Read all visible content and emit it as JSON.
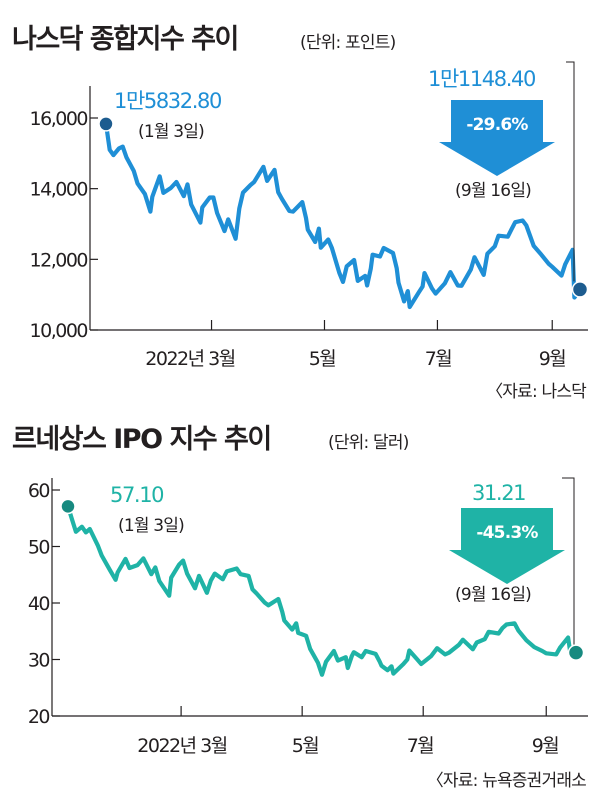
{
  "chart_data": [
    {
      "type": "line",
      "title": "나스닥 종합지수 추이",
      "unit": "(단위: 포인트)",
      "source": "〈자료: 나스닥",
      "color": "#1f8fd6",
      "marker_color": "#1d5c8f",
      "ylim": [
        10000,
        16500
      ],
      "yticks": [
        "16,000",
        "14,000",
        "12,000",
        "10,000"
      ],
      "ytick_values": [
        16000,
        14000,
        12000,
        10000
      ],
      "xticks": [
        "2022년 3월",
        "5월",
        "7월",
        "9월"
      ],
      "xlim": [
        "2022-01-03",
        "2022-09-16"
      ],
      "xtick_dates": [
        "2022-03-01",
        "2022-05-01",
        "2022-07-01",
        "2022-09-01"
      ],
      "start": {
        "date": "2022-01-03",
        "value": 15832.8,
        "label": "1만5832.80",
        "note": "(1월 3일)"
      },
      "end": {
        "date": "2022-09-16",
        "value": 11148.4,
        "label": "1만1148.40",
        "note": "(9월 16일)"
      },
      "change": "-29.6%",
      "series": [
        {
          "values": [
            [
              "2022-01-03",
              15832.8
            ],
            [
              "2022-01-05",
              15100
            ],
            [
              "2022-01-07",
              14950
            ],
            [
              "2022-01-10",
              15140
            ],
            [
              "2022-01-12",
              15190
            ],
            [
              "2022-01-14",
              14890
            ],
            [
              "2022-01-18",
              14500
            ],
            [
              "2022-01-20",
              14150
            ],
            [
              "2022-01-24",
              13850
            ],
            [
              "2022-01-27",
              13350
            ],
            [
              "2022-01-28",
              13770
            ],
            [
              "2022-02-01",
              14350
            ],
            [
              "2022-02-03",
              13880
            ],
            [
              "2022-02-07",
              14020
            ],
            [
              "2022-02-10",
              14190
            ],
            [
              "2022-02-14",
              13790
            ],
            [
              "2022-02-16",
              14120
            ],
            [
              "2022-02-18",
              13550
            ],
            [
              "2022-02-23",
              13040
            ],
            [
              "2022-02-24",
              13470
            ],
            [
              "2022-02-28",
              13750
            ],
            [
              "2022-03-02",
              13750
            ],
            [
              "2022-03-04",
              13310
            ],
            [
              "2022-03-08",
              12800
            ],
            [
              "2022-03-10",
              13130
            ],
            [
              "2022-03-14",
              12580
            ],
            [
              "2022-03-16",
              13440
            ],
            [
              "2022-03-18",
              13890
            ],
            [
              "2022-03-22",
              14100
            ],
            [
              "2022-03-24",
              14190
            ],
            [
              "2022-03-29",
              14620
            ],
            [
              "2022-03-31",
              14220
            ],
            [
              "2022-04-04",
              14530
            ],
            [
              "2022-04-06",
              13900
            ],
            [
              "2022-04-08",
              13710
            ],
            [
              "2022-04-12",
              13370
            ],
            [
              "2022-04-14",
              13350
            ],
            [
              "2022-04-19",
              13620
            ],
            [
              "2022-04-21",
              13170
            ],
            [
              "2022-04-22",
              12840
            ],
            [
              "2022-04-26",
              12490
            ],
            [
              "2022-04-28",
              12870
            ],
            [
              "2022-04-29",
              12330
            ],
            [
              "2022-05-03",
              12560
            ],
            [
              "2022-05-05",
              12320
            ],
            [
              "2022-05-09",
              11620
            ],
            [
              "2022-05-11",
              11360
            ],
            [
              "2022-05-13",
              11800
            ],
            [
              "2022-05-17",
              11980
            ],
            [
              "2022-05-19",
              11390
            ],
            [
              "2022-05-23",
              11530
            ],
            [
              "2022-05-24",
              11260
            ],
            [
              "2022-05-26",
              11740
            ],
            [
              "2022-05-27",
              12130
            ],
            [
              "2022-05-31",
              12080
            ],
            [
              "2022-06-02",
              12320
            ],
            [
              "2022-06-07",
              12180
            ],
            [
              "2022-06-09",
              11750
            ],
            [
              "2022-06-10",
              11340
            ],
            [
              "2022-06-13",
              10810
            ],
            [
              "2022-06-15",
              11100
            ],
            [
              "2022-06-16",
              10650
            ],
            [
              "2022-06-21",
              11070
            ],
            [
              "2022-06-23",
              11230
            ],
            [
              "2022-06-24",
              11610
            ],
            [
              "2022-06-28",
              11180
            ],
            [
              "2022-06-30",
              11030
            ],
            [
              "2022-07-05",
              11320
            ],
            [
              "2022-07-08",
              11640
            ],
            [
              "2022-07-12",
              11260
            ],
            [
              "2022-07-14",
              11250
            ],
            [
              "2022-07-19",
              11710
            ],
            [
              "2022-07-21",
              12060
            ],
            [
              "2022-07-26",
              11560
            ],
            [
              "2022-07-28",
              12160
            ],
            [
              "2022-08-01",
              12370
            ],
            [
              "2022-08-03",
              12670
            ],
            [
              "2022-08-08",
              12640
            ],
            [
              "2022-08-10",
              12850
            ],
            [
              "2022-08-12",
              13050
            ],
            [
              "2022-08-16",
              13100
            ],
            [
              "2022-08-18",
              12960
            ],
            [
              "2022-08-22",
              12380
            ],
            [
              "2022-08-26",
              12140
            ],
            [
              "2022-08-30",
              11880
            ],
            [
              "2022-09-01",
              11790
            ],
            [
              "2022-09-06",
              11540
            ],
            [
              "2022-09-08",
              11860
            ],
            [
              "2022-09-12",
              12270
            ],
            [
              "2022-09-13",
              10920
            ],
            [
              "2022-09-16",
              11148.4
            ]
          ]
        }
      ]
    },
    {
      "type": "line",
      "title": "르네상스 IPO 지수 추이",
      "unit": "(단위: 달러)",
      "source": "〈자료: 뉴욕증권거래소",
      "color": "#1fb3a6",
      "marker_color": "#178a80",
      "ylim": [
        20,
        62
      ],
      "yticks": [
        "60",
        "50",
        "40",
        "30",
        "20"
      ],
      "ytick_values": [
        60,
        50,
        40,
        30,
        20
      ],
      "xticks": [
        "2022년 3월",
        "5월",
        "7월",
        "9월"
      ],
      "xlim": [
        "2022-01-03",
        "2022-09-16"
      ],
      "xtick_dates": [
        "2022-03-01",
        "2022-05-01",
        "2022-07-01",
        "2022-09-01"
      ],
      "start": {
        "date": "2022-01-03",
        "value": 57.1,
        "label": "57.10",
        "note": "(1월 3일)"
      },
      "end": {
        "date": "2022-09-16",
        "value": 31.21,
        "label": "31.21",
        "note": "(9월 16일)"
      },
      "change": "-45.3%",
      "series": [
        {
          "values": [
            [
              "2022-01-03",
              57.1
            ],
            [
              "2022-01-05",
              54.8
            ],
            [
              "2022-01-07",
              52.6
            ],
            [
              "2022-01-10",
              53.5
            ],
            [
              "2022-01-12",
              52.5
            ],
            [
              "2022-01-14",
              53.1
            ],
            [
              "2022-01-18",
              50.2
            ],
            [
              "2022-01-20",
              48.4
            ],
            [
              "2022-01-24",
              45.9
            ],
            [
              "2022-01-27",
              44.1
            ],
            [
              "2022-01-28",
              45.4
            ],
            [
              "2022-02-01",
              47.8
            ],
            [
              "2022-02-03",
              46.2
            ],
            [
              "2022-02-07",
              46.7
            ],
            [
              "2022-02-10",
              47.9
            ],
            [
              "2022-02-14",
              45.1
            ],
            [
              "2022-02-16",
              46.3
            ],
            [
              "2022-02-18",
              43.9
            ],
            [
              "2022-02-23",
              41.3
            ],
            [
              "2022-02-24",
              44.5
            ],
            [
              "2022-02-28",
              46.8
            ],
            [
              "2022-03-02",
              47.5
            ],
            [
              "2022-03-04",
              45.2
            ],
            [
              "2022-03-08",
              42.6
            ],
            [
              "2022-03-10",
              44.8
            ],
            [
              "2022-03-14",
              41.8
            ],
            [
              "2022-03-16",
              44.0
            ],
            [
              "2022-03-18",
              45.2
            ],
            [
              "2022-03-22",
              44.2
            ],
            [
              "2022-03-24",
              45.6
            ],
            [
              "2022-03-29",
              46.1
            ],
            [
              "2022-03-31",
              45.1
            ],
            [
              "2022-04-04",
              44.8
            ],
            [
              "2022-04-06",
              42.4
            ],
            [
              "2022-04-08",
              41.7
            ],
            [
              "2022-04-12",
              40.1
            ],
            [
              "2022-04-14",
              39.6
            ],
            [
              "2022-04-19",
              40.7
            ],
            [
              "2022-04-21",
              38.4
            ],
            [
              "2022-04-22",
              36.9
            ],
            [
              "2022-04-26",
              35.3
            ],
            [
              "2022-04-28",
              36.4
            ],
            [
              "2022-04-29",
              34.7
            ],
            [
              "2022-05-03",
              34.2
            ],
            [
              "2022-05-05",
              31.9
            ],
            [
              "2022-05-09",
              29.4
            ],
            [
              "2022-05-11",
              27.3
            ],
            [
              "2022-05-13",
              29.6
            ],
            [
              "2022-05-17",
              31.5
            ],
            [
              "2022-05-19",
              29.8
            ],
            [
              "2022-05-23",
              30.4
            ],
            [
              "2022-05-24",
              28.5
            ],
            [
              "2022-05-26",
              30.6
            ],
            [
              "2022-05-27",
              31.3
            ],
            [
              "2022-05-31",
              30.4
            ],
            [
              "2022-06-02",
              31.5
            ],
            [
              "2022-06-07",
              31.0
            ],
            [
              "2022-06-09",
              29.7
            ],
            [
              "2022-06-10",
              28.9
            ],
            [
              "2022-06-13",
              28.1
            ],
            [
              "2022-06-15",
              28.8
            ],
            [
              "2022-06-16",
              27.5
            ],
            [
              "2022-06-21",
              29.2
            ],
            [
              "2022-06-23",
              30.0
            ],
            [
              "2022-06-24",
              31.6
            ],
            [
              "2022-06-28",
              30.0
            ],
            [
              "2022-06-30",
              29.2
            ],
            [
              "2022-07-05",
              30.6
            ],
            [
              "2022-07-08",
              32.0
            ],
            [
              "2022-07-12",
              30.9
            ],
            [
              "2022-07-14",
              31.2
            ],
            [
              "2022-07-19",
              32.6
            ],
            [
              "2022-07-21",
              33.5
            ],
            [
              "2022-07-26",
              31.8
            ],
            [
              "2022-07-28",
              33.0
            ],
            [
              "2022-08-01",
              33.6
            ],
            [
              "2022-08-03",
              34.9
            ],
            [
              "2022-08-08",
              34.6
            ],
            [
              "2022-08-10",
              35.6
            ],
            [
              "2022-08-12",
              36.2
            ],
            [
              "2022-08-16",
              36.4
            ],
            [
              "2022-08-18",
              35.1
            ],
            [
              "2022-08-22",
              33.4
            ],
            [
              "2022-08-26",
              32.2
            ],
            [
              "2022-08-30",
              31.5
            ],
            [
              "2022-09-01",
              31.1
            ],
            [
              "2022-09-06",
              30.9
            ],
            [
              "2022-09-08",
              32.1
            ],
            [
              "2022-09-12",
              33.9
            ],
            [
              "2022-09-13",
              31.6
            ],
            [
              "2022-09-16",
              31.21
            ]
          ]
        }
      ]
    }
  ]
}
